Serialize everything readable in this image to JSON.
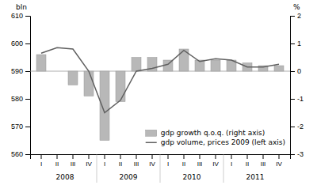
{
  "chart_data": {
    "type": "bar",
    "categories": [
      "I",
      "II",
      "III",
      "IV",
      "I",
      "II",
      "III",
      "IV",
      "I",
      "II",
      "III",
      "IV",
      "I",
      "II",
      "III",
      "IV"
    ],
    "annotations": [
      "2008",
      "2009",
      "2010",
      "2011"
    ],
    "series": [
      {
        "name": "gdp growth q.o.q. (right axis)",
        "type": "bar",
        "axis": "y2",
        "color": "#b8b8b8",
        "values": [
          0.6,
          0.0,
          -0.5,
          -0.9,
          -2.5,
          -1.1,
          0.5,
          0.5,
          0.4,
          0.8,
          0.4,
          0.4,
          0.4,
          0.3,
          0.2,
          0.2
        ]
      },
      {
        "name": "gdp volume, prices 2009 (left axis)",
        "type": "line",
        "color": "#606060",
        "values": [
          596.5,
          598.5,
          598.0,
          590.0,
          575.0,
          579.5,
          590.0,
          591.0,
          592.5,
          597.5,
          593.5,
          594.5,
          594.0,
          591.5,
          591.5,
          592.5
        ]
      }
    ],
    "reference_line": 590,
    "y_label": "bln",
    "y2_label": "%",
    "ylim": [
      560,
      610
    ],
    "yticks": [
      560,
      570,
      580,
      590,
      600,
      610
    ],
    "y2lim": [
      -3,
      2
    ],
    "y2ticks": [
      -3,
      -2,
      -1,
      0,
      1,
      2
    ],
    "legend": "lower right"
  }
}
